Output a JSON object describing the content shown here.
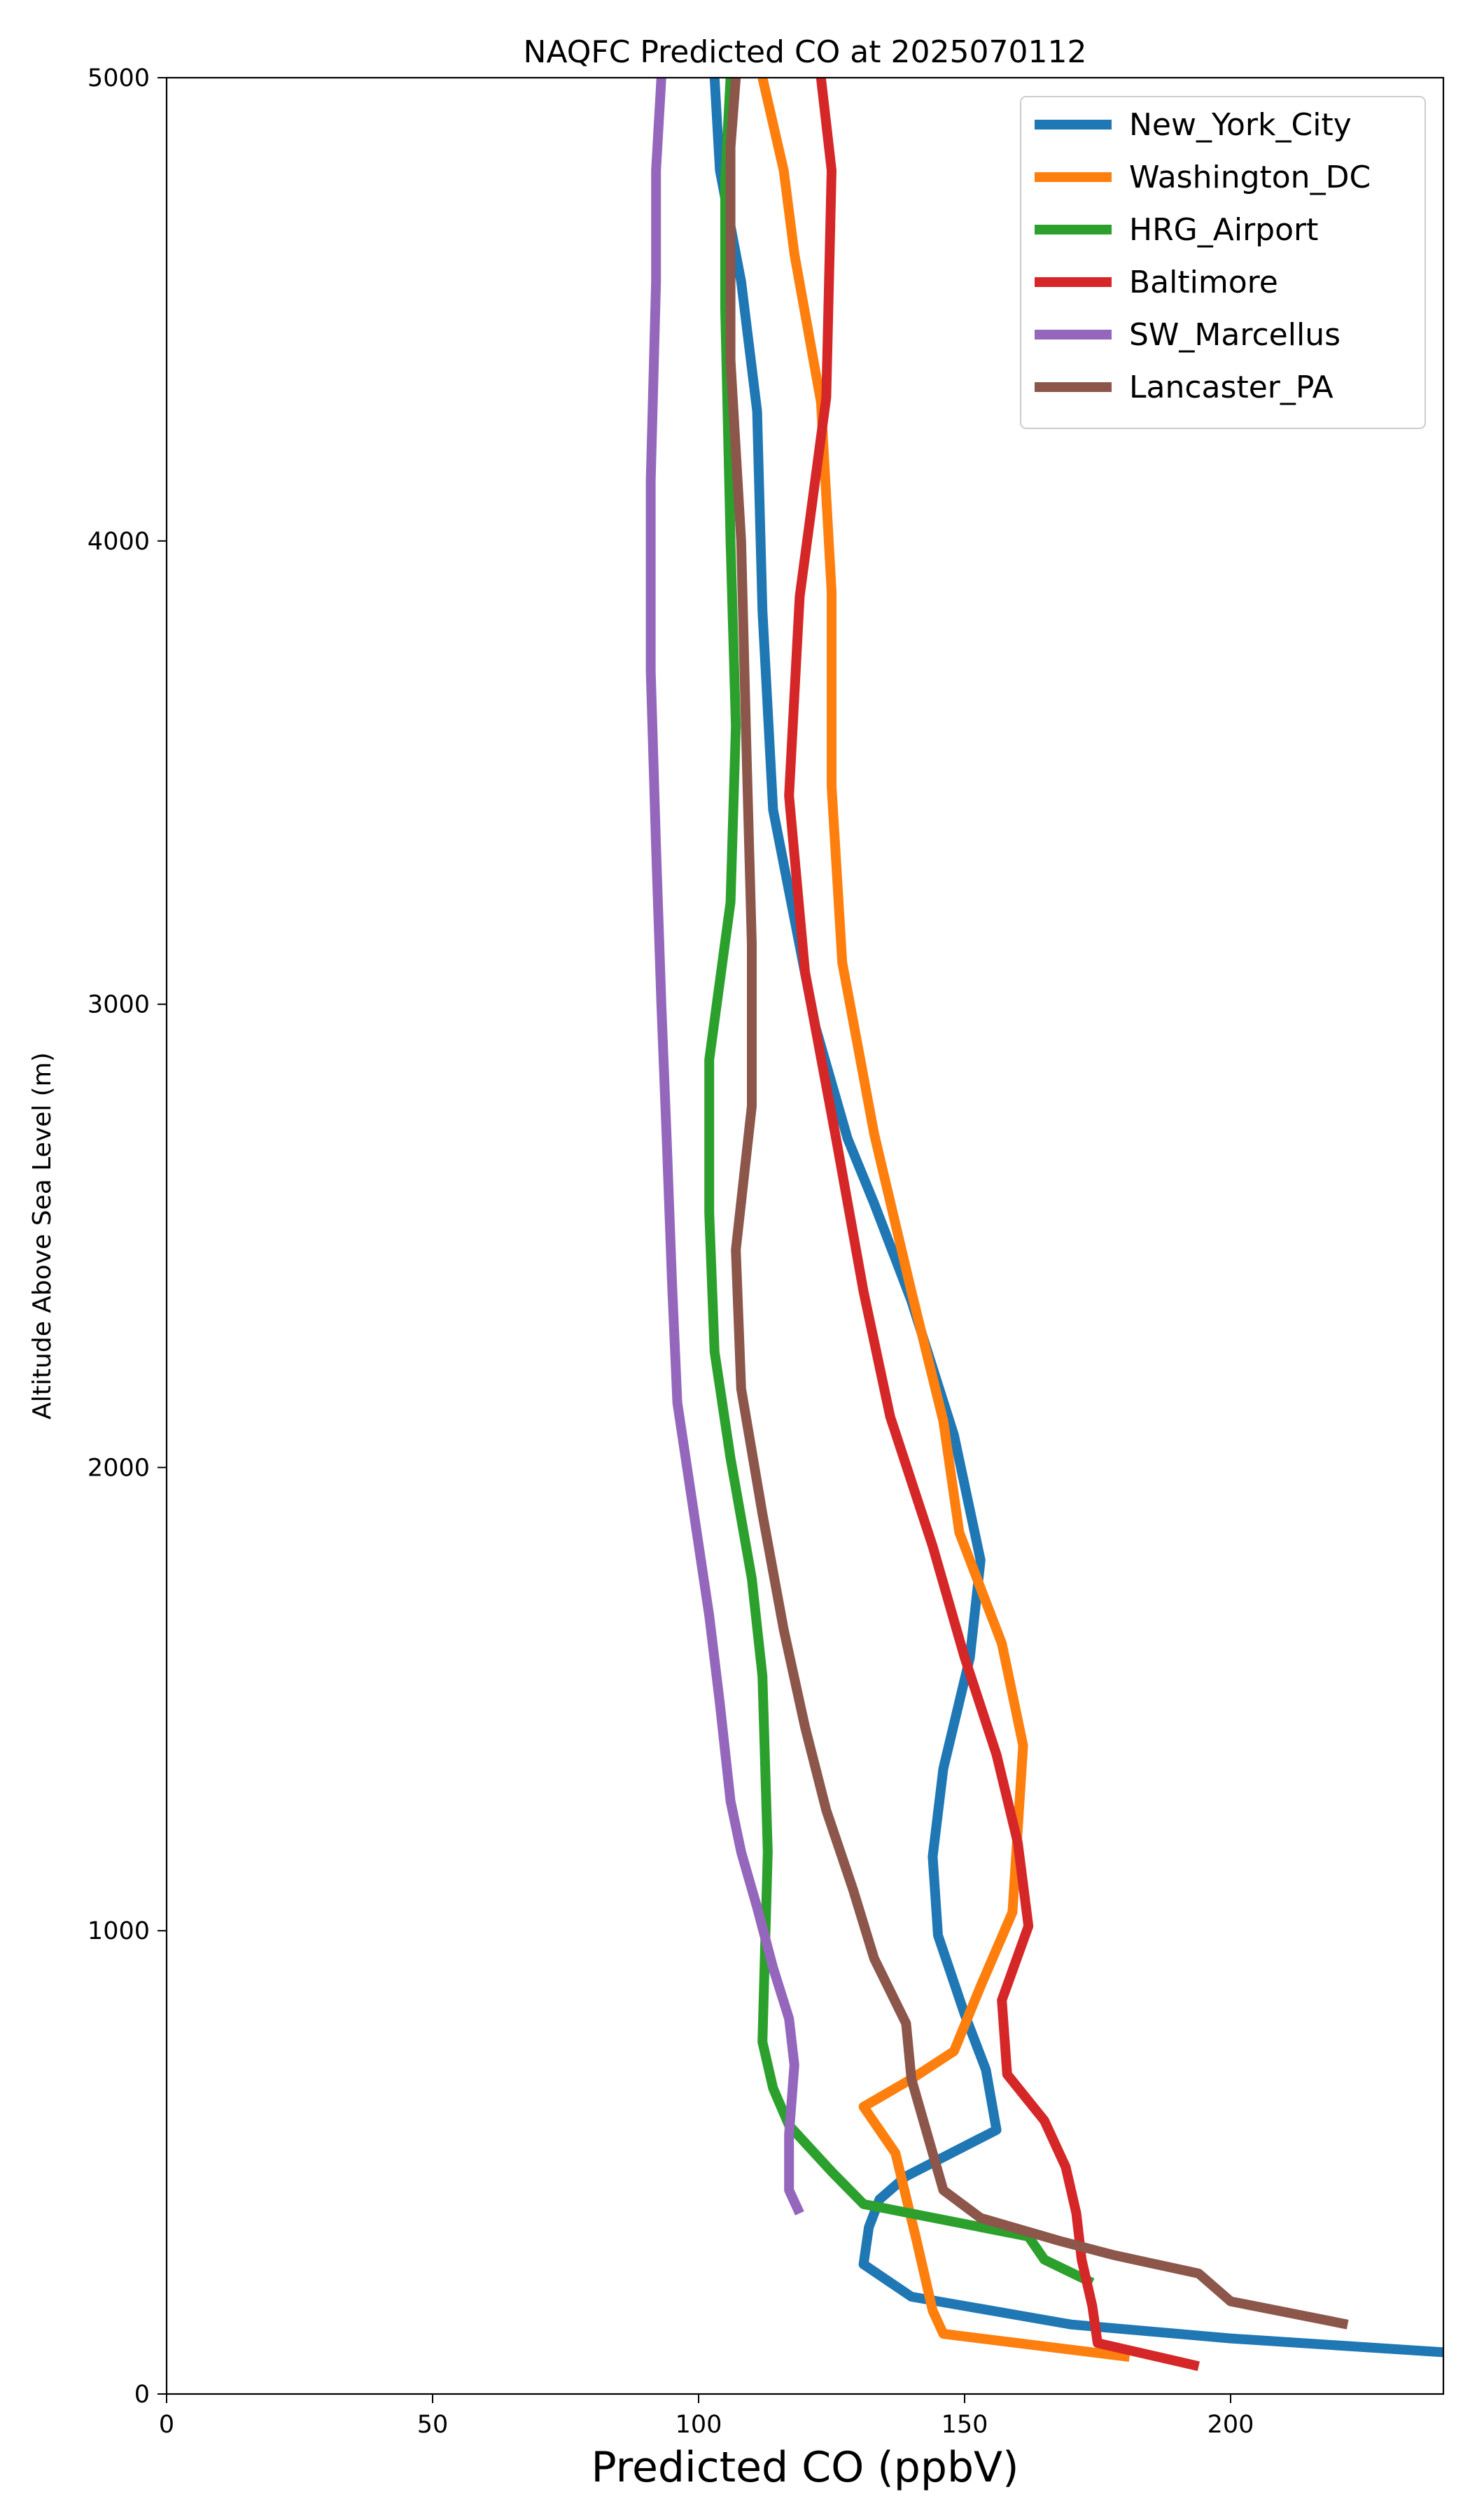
{
  "chart_data": {
    "type": "line",
    "title": "NAQFC Predicted CO at 2025070112",
    "xlabel": "Predicted CO (ppbV)",
    "ylabel": "Altitude Above Sea Level (m)",
    "xlim": [
      0,
      240
    ],
    "ylim": [
      0,
      5000
    ],
    "xticks": [
      0,
      50,
      100,
      150,
      200
    ],
    "yticks": [
      0,
      1000,
      2000,
      3000,
      4000,
      5000
    ],
    "grid": false,
    "legend_position": "top-right",
    "series": [
      {
        "name": "New_York_City",
        "color": "#1f77b4",
        "points": [
          [
            240,
            90
          ],
          [
            200,
            120
          ],
          [
            170,
            150
          ],
          [
            140,
            210
          ],
          [
            131,
            280
          ],
          [
            132,
            360
          ],
          [
            134,
            420
          ],
          [
            139,
            470
          ],
          [
            156,
            570
          ],
          [
            154,
            700
          ],
          [
            150,
            820
          ],
          [
            145,
            990
          ],
          [
            144,
            1160
          ],
          [
            146,
            1350
          ],
          [
            151,
            1590
          ],
          [
            153,
            1800
          ],
          [
            148,
            2070
          ],
          [
            140,
            2360
          ],
          [
            133,
            2570
          ],
          [
            128,
            2710
          ],
          [
            122,
            2950
          ],
          [
            114,
            3420
          ],
          [
            112,
            3850
          ],
          [
            111,
            4280
          ],
          [
            108,
            4560
          ],
          [
            104,
            4800
          ],
          [
            103,
            5000
          ]
        ]
      },
      {
        "name": "Washington_DC",
        "color": "#ff7f0e",
        "points": [
          [
            181,
            80
          ],
          [
            146,
            130
          ],
          [
            144,
            180
          ],
          [
            141,
            330
          ],
          [
            137,
            520
          ],
          [
            131,
            620
          ],
          [
            140,
            680
          ],
          [
            148,
            740
          ],
          [
            153,
            880
          ],
          [
            159,
            1040
          ],
          [
            161,
            1400
          ],
          [
            157,
            1620
          ],
          [
            149,
            1860
          ],
          [
            146,
            2100
          ],
          [
            140,
            2380
          ],
          [
            133,
            2720
          ],
          [
            127,
            3090
          ],
          [
            125,
            3470
          ],
          [
            125,
            3890
          ],
          [
            123,
            4300
          ],
          [
            118,
            4620
          ],
          [
            116,
            4800
          ],
          [
            112,
            5000
          ]
        ]
      },
      {
        "name": "HRG_Airport",
        "color": "#2ca02c",
        "points": [
          [
            174,
            240
          ],
          [
            165,
            290
          ],
          [
            162,
            340
          ],
          [
            131,
            410
          ],
          [
            125,
            480
          ],
          [
            117,
            580
          ],
          [
            114,
            660
          ],
          [
            112,
            760
          ],
          [
            113,
            1170
          ],
          [
            112,
            1550
          ],
          [
            110,
            1760
          ],
          [
            106,
            2020
          ],
          [
            103,
            2250
          ],
          [
            102,
            2550
          ],
          [
            102,
            2880
          ],
          [
            106,
            3220
          ],
          [
            107,
            3600
          ],
          [
            106,
            4000
          ],
          [
            105,
            4500
          ],
          [
            105,
            4780
          ],
          [
            106,
            5000
          ]
        ]
      },
      {
        "name": "Baltimore",
        "color": "#d62728",
        "points": [
          [
            194,
            60
          ],
          [
            175,
            110
          ],
          [
            174,
            190
          ],
          [
            172,
            290
          ],
          [
            171,
            390
          ],
          [
            169,
            490
          ],
          [
            165,
            590
          ],
          [
            158,
            690
          ],
          [
            157,
            850
          ],
          [
            162,
            1010
          ],
          [
            160,
            1190
          ],
          [
            156,
            1380
          ],
          [
            150,
            1590
          ],
          [
            144,
            1830
          ],
          [
            136,
            2110
          ],
          [
            131,
            2380
          ],
          [
            126,
            2700
          ],
          [
            120,
            3070
          ],
          [
            117,
            3450
          ],
          [
            119,
            3880
          ],
          [
            124,
            4310
          ],
          [
            125,
            4800
          ],
          [
            123,
            5000
          ]
        ]
      },
      {
        "name": "SW_Marcellus",
        "color": "#9467bd",
        "points": [
          [
            119,
            390
          ],
          [
            117,
            440
          ],
          [
            117,
            560
          ],
          [
            118,
            710
          ],
          [
            117,
            810
          ],
          [
            114,
            920
          ],
          [
            111,
            1050
          ],
          [
            108,
            1170
          ],
          [
            106,
            1280
          ],
          [
            104,
            1490
          ],
          [
            102,
            1680
          ],
          [
            96,
            2140
          ],
          [
            95,
            2400
          ],
          [
            94,
            2710
          ],
          [
            93,
            3000
          ],
          [
            92,
            3340
          ],
          [
            91,
            3720
          ],
          [
            91,
            4130
          ],
          [
            92,
            4560
          ],
          [
            92,
            4800
          ],
          [
            93,
            5000
          ]
        ]
      },
      {
        "name": "Lancaster_PA",
        "color": "#8c564b",
        "points": [
          [
            222,
            150
          ],
          [
            200,
            200
          ],
          [
            194,
            260
          ],
          [
            178,
            300
          ],
          [
            168,
            330
          ],
          [
            153,
            380
          ],
          [
            146,
            440
          ],
          [
            143,
            560
          ],
          [
            140,
            680
          ],
          [
            139,
            800
          ],
          [
            133,
            940
          ],
          [
            129,
            1090
          ],
          [
            124,
            1260
          ],
          [
            120,
            1440
          ],
          [
            116,
            1650
          ],
          [
            112,
            1900
          ],
          [
            108,
            2170
          ],
          [
            107,
            2470
          ],
          [
            110,
            2780
          ],
          [
            110,
            3130
          ],
          [
            109,
            3550
          ],
          [
            108,
            4000
          ],
          [
            106,
            4390
          ],
          [
            106,
            4850
          ],
          [
            107,
            5000
          ]
        ]
      }
    ]
  }
}
